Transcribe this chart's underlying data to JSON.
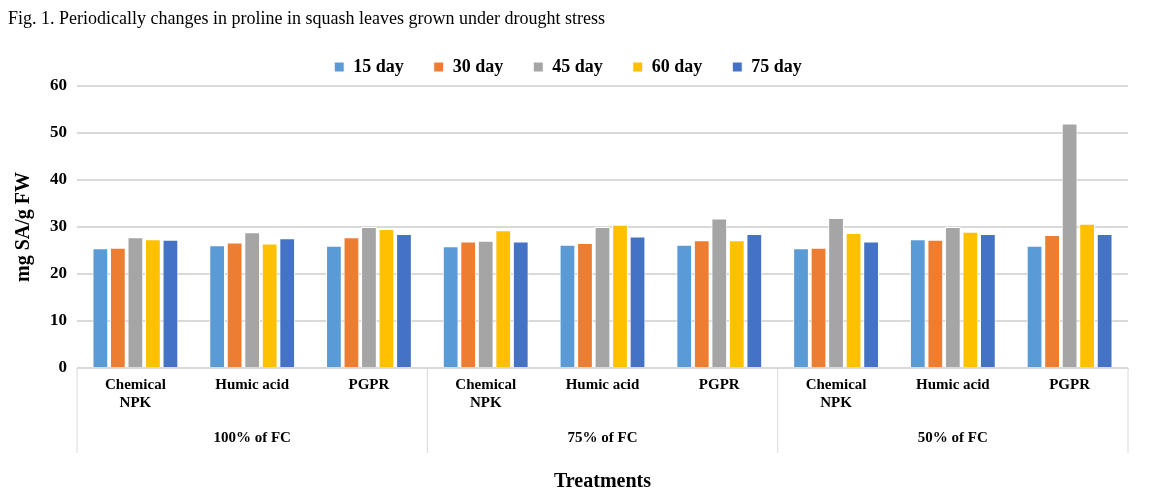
{
  "chart_data": {
    "type": "bar",
    "title": "Fig. 1. Periodically changes in proline in squash leaves grown under drought stress",
    "xlabel": "Treatments",
    "ylabel": "mg SA/g FW",
    "categories": [
      "Chemical NPK",
      "Humic acid",
      "PGPR",
      "Chemical NPK",
      "Humic acid",
      "PGPR",
      "Chemical NPK",
      "Humic acid",
      "PGPR"
    ],
    "annotations": [
      "100% of FC",
      "75% of FC",
      "50% of FC"
    ],
    "series": [
      {
        "name": "15 day",
        "color": "#5b9bd5",
        "values": [
          25.5,
          26.1,
          26.0,
          25.9,
          26.2,
          26.2,
          25.5,
          27.4,
          26.0
        ]
      },
      {
        "name": "30 day",
        "color": "#ed7d31",
        "values": [
          25.6,
          26.7,
          27.8,
          26.9,
          26.6,
          27.2,
          25.6,
          27.3,
          28.3
        ]
      },
      {
        "name": "45 day",
        "color": "#a5a5a5",
        "values": [
          27.8,
          28.9,
          30.0,
          27.1,
          30.0,
          31.8,
          31.9,
          30.0,
          52.0
        ]
      },
      {
        "name": "60 day",
        "color": "#ffc000",
        "values": [
          27.4,
          26.5,
          29.6,
          29.3,
          30.5,
          27.2,
          28.7,
          29.0,
          30.7
        ]
      },
      {
        "name": "75 day",
        "color": "#4472c4",
        "values": [
          27.3,
          27.6,
          28.5,
          26.9,
          28.0,
          28.5,
          26.9,
          28.5,
          28.5
        ]
      }
    ],
    "ylim": [
      0,
      60
    ],
    "yticks": [
      0,
      10,
      20,
      30,
      40,
      50,
      60
    ],
    "grid": "y",
    "legend": "top"
  }
}
